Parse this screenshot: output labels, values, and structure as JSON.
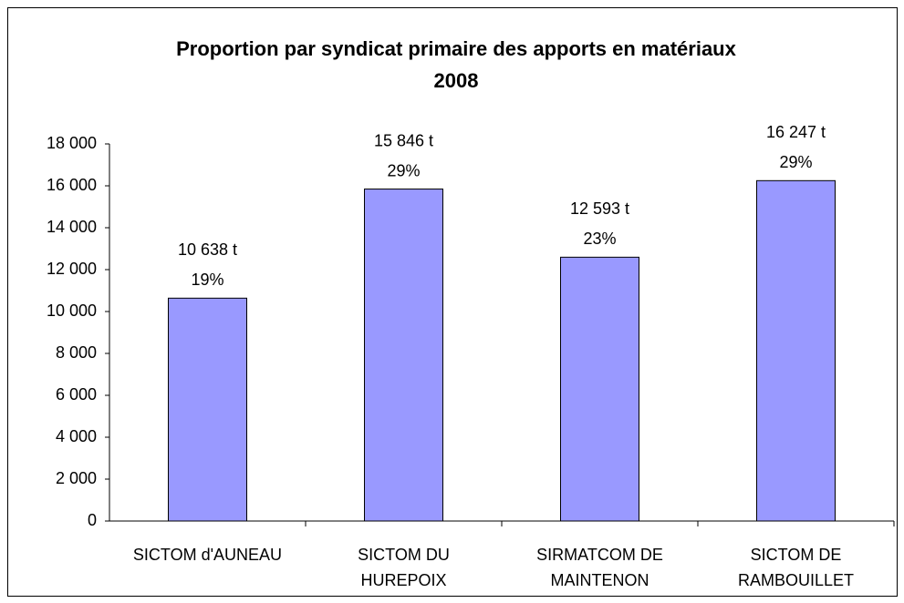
{
  "chart_data": {
    "type": "bar",
    "title": [
      "Proportion par syndicat primaire des apports en matériaux",
      "2008"
    ],
    "categories": [
      [
        "SICTOM d'AUNEAU"
      ],
      [
        "SICTOM DU",
        "HUREPOIX"
      ],
      [
        "SIRMATCOM DE",
        "MAINTENON"
      ],
      [
        "SICTOM DE",
        "RAMBOUILLET"
      ]
    ],
    "values": [
      10638,
      15846,
      12593,
      16247
    ],
    "value_labels": [
      "10 638 t",
      "15 846 t",
      "12 593 t",
      "16 247 t"
    ],
    "shares": [
      19,
      29,
      23,
      29
    ],
    "share_labels": [
      "19%",
      "29%",
      "23%",
      "29%"
    ],
    "color": "#9999ff",
    "ylim": [
      0,
      18000
    ],
    "yticks": [
      0,
      {
        "value": 2000,
        "label": "2 000"
      },
      {
        "value": 4000,
        "label": "4 000"
      },
      {
        "value": 6000,
        "label": "6 000"
      },
      {
        "value": 8000,
        "label": "8 000"
      },
      {
        "value": 10000,
        "label": "10 000"
      },
      {
        "value": 12000,
        "label": "12 000"
      },
      {
        "value": 14000,
        "label": "14 000"
      },
      {
        "value": 16000,
        "label": "16 000"
      },
      {
        "value": 18000,
        "label": "18 000"
      }
    ],
    "grid": false
  }
}
